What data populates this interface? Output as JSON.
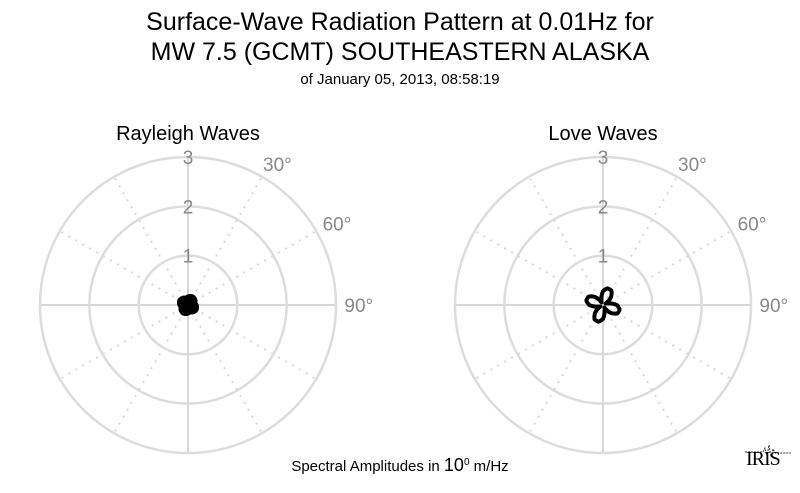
{
  "header": {
    "title_line1": "Surface-Wave Radiation Pattern at 0.01Hz for",
    "title_line2": "MW 7.5 (GCMT) SOUTHEASTERN ALASKA",
    "subtitle": "of January 05, 2013, 08:58:19"
  },
  "footer": {
    "prefix": "Spectral Amplitudes in ",
    "base": "10",
    "exponent": "0",
    "unit": " m/Hz"
  },
  "logo": "IRIS",
  "chart_data": [
    {
      "type": "polar-line",
      "title": "Rayleigh Waves",
      "radial_ticks": [
        "1",
        "2",
        "3"
      ],
      "rlim": [
        0,
        3
      ],
      "angle_ticks": [
        "30°",
        "60°",
        "90°"
      ],
      "angle_direction": "clockwise-from-north",
      "grid": true,
      "azimuth_deg": [
        0,
        15,
        30,
        45,
        60,
        75,
        90,
        105,
        120,
        135,
        150,
        165,
        180,
        195,
        210,
        225,
        240,
        255,
        270,
        285,
        300,
        315,
        330,
        345
      ],
      "values": [
        0.175,
        0.19,
        0.2,
        0.19,
        0.175,
        0.15,
        0.175,
        0.19,
        0.2,
        0.19,
        0.175,
        0.15,
        0.175,
        0.19,
        0.2,
        0.19,
        0.175,
        0.15,
        0.175,
        0.19,
        0.2,
        0.19,
        0.175,
        0.15
      ],
      "color": "#000000"
    },
    {
      "type": "polar-line",
      "title": "Love Waves",
      "radial_ticks": [
        "1",
        "2",
        "3"
      ],
      "rlim": [
        0,
        3
      ],
      "angle_ticks": [
        "30°",
        "60°",
        "90°"
      ],
      "angle_direction": "clockwise-from-north",
      "grid": true,
      "azimuth_deg": [
        0,
        15,
        30,
        45,
        60,
        75,
        90,
        105,
        120,
        135,
        150,
        165,
        180,
        195,
        210,
        225,
        240,
        255,
        270,
        285,
        300,
        315,
        330,
        345
      ],
      "values": [
        0.28,
        0.35,
        0.34,
        0.23,
        0.06,
        0.12,
        0.28,
        0.35,
        0.34,
        0.23,
        0.06,
        0.12,
        0.28,
        0.35,
        0.34,
        0.23,
        0.06,
        0.12,
        0.28,
        0.35,
        0.34,
        0.23,
        0.06,
        0.12
      ],
      "color": "#000000"
    }
  ]
}
